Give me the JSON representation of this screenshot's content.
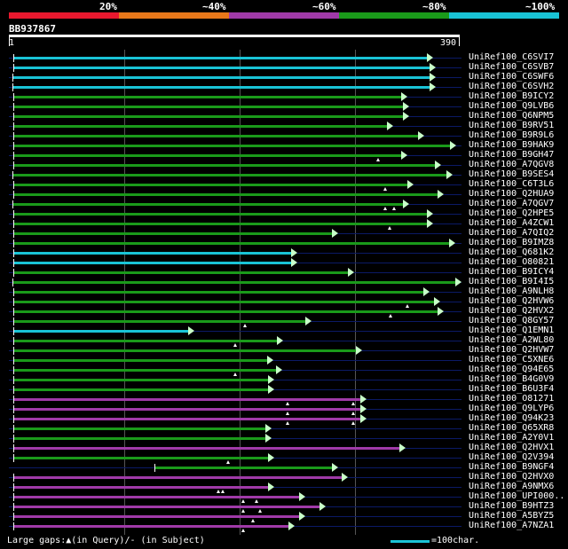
{
  "legend": {
    "labels": [
      "20%",
      "~40%",
      "~60%",
      "~80%",
      "~100%"
    ],
    "colors": [
      "#e8182e",
      "#e8781a",
      "#a03aa8",
      "#1a9a1a",
      "#19c3d6"
    ]
  },
  "query": {
    "id": "BB937867",
    "start": "1",
    "end": "390"
  },
  "colors": {
    "green": "#1a9a1a",
    "cyan": "#19c3d6",
    "purple": "#a03aa8",
    "bg": "#000000",
    "grid": "#0b1a66"
  },
  "hits": [
    {
      "name": "UniRef100_C6SVI7",
      "color": "cyan",
      "s": 1,
      "e": 365,
      "marks": []
    },
    {
      "name": "UniRef100_C6SVB7",
      "color": "cyan",
      "s": 1,
      "e": 367,
      "marks": []
    },
    {
      "name": "UniRef100_C6SWF6",
      "color": "cyan",
      "s": 0,
      "e": 367,
      "marks": []
    },
    {
      "name": "UniRef100_C6SVH2",
      "color": "cyan",
      "s": 0,
      "e": 367,
      "marks": []
    },
    {
      "name": "UniRef100_B9ICY2",
      "color": "green",
      "s": 1,
      "e": 342,
      "marks": []
    },
    {
      "name": "UniRef100_Q9LVB6",
      "color": "green",
      "s": 1,
      "e": 344,
      "marks": []
    },
    {
      "name": "UniRef100_Q6NPM5",
      "color": "green",
      "s": 1,
      "e": 344,
      "marks": []
    },
    {
      "name": "UniRef100_B9RV51",
      "color": "green",
      "s": 1,
      "e": 330,
      "marks": []
    },
    {
      "name": "UniRef100_B9R9L6",
      "color": "green",
      "s": 1,
      "e": 357,
      "marks": []
    },
    {
      "name": "UniRef100_B9HAK9",
      "color": "green",
      "s": 1,
      "e": 385,
      "marks": []
    },
    {
      "name": "UniRef100_B9GH47",
      "color": "green",
      "s": 1,
      "e": 342,
      "marks": [
        322
      ]
    },
    {
      "name": "UniRef100_A7QGV8",
      "color": "green",
      "s": 1,
      "e": 372,
      "marks": []
    },
    {
      "name": "UniRef100_B9SES4",
      "color": "green",
      "s": 0,
      "e": 382,
      "marks": []
    },
    {
      "name": "UniRef100_C6T3L6",
      "color": "green",
      "s": 1,
      "e": 348,
      "marks": [
        328
      ]
    },
    {
      "name": "UniRef100_Q2HUA9",
      "color": "green",
      "s": 1,
      "e": 374,
      "marks": []
    },
    {
      "name": "UniRef100_A7QGV7",
      "color": "green",
      "s": 0,
      "e": 344,
      "marks": [
        328,
        336
      ]
    },
    {
      "name": "UniRef100_Q2HPE5",
      "color": "green",
      "s": 1,
      "e": 365,
      "marks": []
    },
    {
      "name": "UniRef100_A4ZCW1",
      "color": "green",
      "s": 1,
      "e": 365,
      "marks": [
        332
      ]
    },
    {
      "name": "UniRef100_A7QIQ2",
      "color": "green",
      "s": 1,
      "e": 281,
      "marks": []
    },
    {
      "name": "UniRef100_B9IMZ8",
      "color": "green",
      "s": 1,
      "e": 384,
      "marks": []
    },
    {
      "name": "UniRef100_Q681K2",
      "color": "cyan",
      "s": 1,
      "e": 245,
      "marks": []
    },
    {
      "name": "UniRef100_O80821",
      "color": "cyan",
      "s": 1,
      "e": 245,
      "marks": []
    },
    {
      "name": "UniRef100_B9ICY4",
      "color": "green",
      "s": 1,
      "e": 295,
      "marks": []
    },
    {
      "name": "UniRef100_B9I4I5",
      "color": "green",
      "s": 0,
      "e": 390,
      "marks": []
    },
    {
      "name": "UniRef100_A9NLH8",
      "color": "green",
      "s": 1,
      "e": 362,
      "marks": []
    },
    {
      "name": "UniRef100_Q2HVW6",
      "color": "green",
      "s": 1,
      "e": 371,
      "marks": [
        348
      ]
    },
    {
      "name": "UniRef100_Q2HVX2",
      "color": "green",
      "s": 1,
      "e": 374,
      "marks": [
        333
      ]
    },
    {
      "name": "UniRef100_Q8GY57",
      "color": "green",
      "s": 1,
      "e": 258,
      "marks": [
        205
      ]
    },
    {
      "name": "UniRef100_Q1EMN1",
      "color": "cyan",
      "s": 1,
      "e": 155,
      "marks": []
    },
    {
      "name": "UniRef100_A2WL80",
      "color": "green",
      "s": 1,
      "e": 233,
      "marks": [
        196
      ]
    },
    {
      "name": "UniRef100_Q2HVW7",
      "color": "green",
      "s": 1,
      "e": 302,
      "marks": []
    },
    {
      "name": "UniRef100_C5XNE6",
      "color": "green",
      "s": 1,
      "e": 224,
      "marks": []
    },
    {
      "name": "UniRef100_Q94E65",
      "color": "green",
      "s": 1,
      "e": 232,
      "marks": [
        196
      ]
    },
    {
      "name": "UniRef100_B4G0V9",
      "color": "green",
      "s": 1,
      "e": 225,
      "marks": []
    },
    {
      "name": "UniRef100_B6U3F4",
      "color": "green",
      "s": 1,
      "e": 225,
      "marks": []
    },
    {
      "name": "UniRef100_O81271",
      "color": "purple",
      "s": 1,
      "e": 306,
      "marks": [
        242,
        300
      ]
    },
    {
      "name": "UniRef100_Q9LYP6",
      "color": "purple",
      "s": 1,
      "e": 306,
      "marks": [
        242,
        300
      ]
    },
    {
      "name": "UniRef100_Q94K23",
      "color": "purple",
      "s": 1,
      "e": 306,
      "marks": [
        242,
        300
      ]
    },
    {
      "name": "UniRef100_Q65XR8",
      "color": "green",
      "s": 1,
      "e": 223,
      "marks": []
    },
    {
      "name": "UniRef100_A2Y0V1",
      "color": "green",
      "s": 1,
      "e": 223,
      "marks": []
    },
    {
      "name": "UniRef100_Q2HVX1",
      "color": "purple",
      "s": 1,
      "e": 341,
      "marks": []
    },
    {
      "name": "UniRef100_Q2V394",
      "color": "green",
      "s": 1,
      "e": 225,
      "marks": [
        190
      ]
    },
    {
      "name": "UniRef100_B9NGF4",
      "color": "green",
      "s": 125,
      "e": 281,
      "marks": []
    },
    {
      "name": "UniRef100_Q2HVX0",
      "color": "purple",
      "s": 1,
      "e": 290,
      "marks": []
    },
    {
      "name": "UniRef100_A9NMX6",
      "color": "purple",
      "s": 1,
      "e": 225,
      "marks": [
        181,
        185
      ]
    },
    {
      "name": "UniRef100_UPI000..",
      "color": "purple",
      "s": 1,
      "e": 252,
      "marks": [
        203,
        215
      ]
    },
    {
      "name": "UniRef100_B9HTZ3",
      "color": "purple",
      "s": 1,
      "e": 270,
      "marks": [
        203,
        218
      ]
    },
    {
      "name": "UniRef100_A5BYZ5",
      "color": "purple",
      "s": 1,
      "e": 252,
      "marks": [
        212
      ]
    },
    {
      "name": "UniRef100_A7NZA1",
      "color": "purple",
      "s": 1,
      "e": 243,
      "marks": [
        203
      ]
    }
  ],
  "footer": {
    "gaps_text": "Large gaps:▲(in Query)/- (in Subject)",
    "scale_text": "=100char."
  }
}
